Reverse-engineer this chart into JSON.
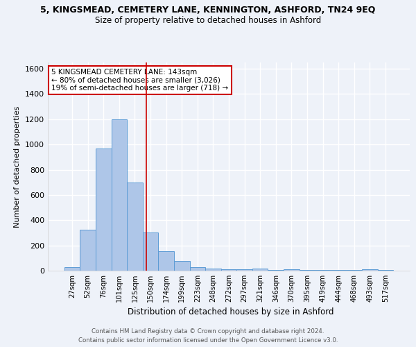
{
  "title": "5, KINGSMEAD, CEMETERY LANE, KENNINGTON, ASHFORD, TN24 9EQ",
  "subtitle": "Size of property relative to detached houses in Ashford",
  "xlabel": "Distribution of detached houses by size in Ashford",
  "ylabel": "Number of detached properties",
  "bar_labels": [
    "27sqm",
    "52sqm",
    "76sqm",
    "101sqm",
    "125sqm",
    "150sqm",
    "174sqm",
    "199sqm",
    "223sqm",
    "248sqm",
    "272sqm",
    "297sqm",
    "321sqm",
    "346sqm",
    "370sqm",
    "395sqm",
    "419sqm",
    "444sqm",
    "468sqm",
    "493sqm",
    "517sqm"
  ],
  "bar_values": [
    25,
    325,
    970,
    1200,
    700,
    305,
    155,
    75,
    25,
    15,
    10,
    10,
    15,
    8,
    12,
    5,
    5,
    3,
    3,
    12,
    3
  ],
  "bar_color": "#aec6e8",
  "bar_edge_color": "#5b9bd5",
  "vline_x": 4.72,
  "vline_color": "#cc0000",
  "annotation_text": "5 KINGSMEAD CEMETERY LANE: 143sqm\n← 80% of detached houses are smaller (3,026)\n19% of semi-detached houses are larger (718) →",
  "annotation_box_color": "#ffffff",
  "annotation_box_edge": "#cc0000",
  "ylim": [
    0,
    1650
  ],
  "yticks": [
    0,
    200,
    400,
    600,
    800,
    1000,
    1200,
    1400,
    1600
  ],
  "background_color": "#eef2f9",
  "grid_color": "#ffffff",
  "footer1": "Contains HM Land Registry data © Crown copyright and database right 2024.",
  "footer2": "Contains public sector information licensed under the Open Government Licence v3.0."
}
